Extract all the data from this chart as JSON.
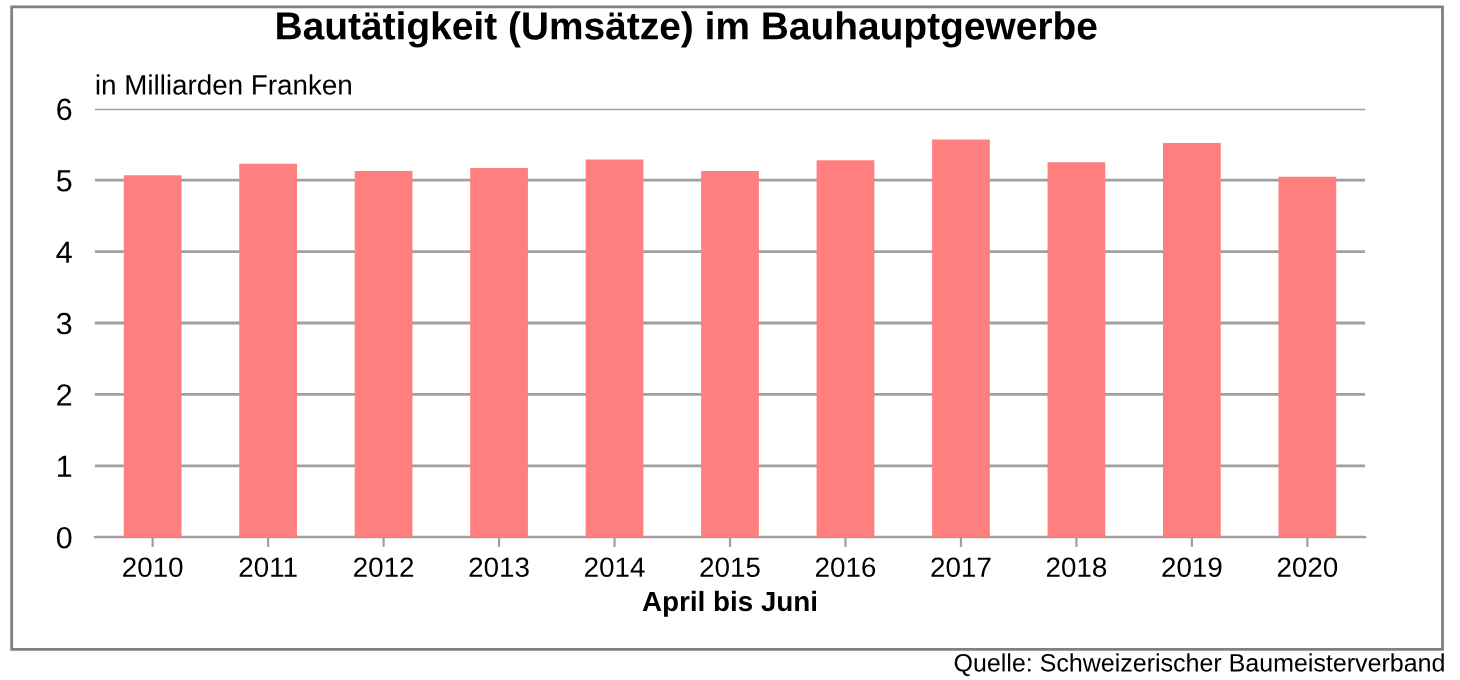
{
  "chart_data": {
    "type": "bar",
    "title": "Bautätigkeit (Umsätze) im Bauhauptgewerbe",
    "ylabel": "in Milliarden Franken",
    "xlabel": "April bis Juni",
    "categories": [
      "2010",
      "2011",
      "2012",
      "2013",
      "2014",
      "2015",
      "2016",
      "2017",
      "2018",
      "2019",
      "2020"
    ],
    "values": [
      5.07,
      5.23,
      5.13,
      5.17,
      5.29,
      5.13,
      5.28,
      5.57,
      5.25,
      5.52,
      5.05
    ],
    "color": "#ff7f7f",
    "ylim": [
      0,
      6
    ],
    "yticks": [
      0,
      1,
      2,
      3,
      4,
      5,
      6
    ],
    "grid": "y",
    "annotations": [
      "Quelle: Schweizerischer Baumeisterverband"
    ]
  }
}
